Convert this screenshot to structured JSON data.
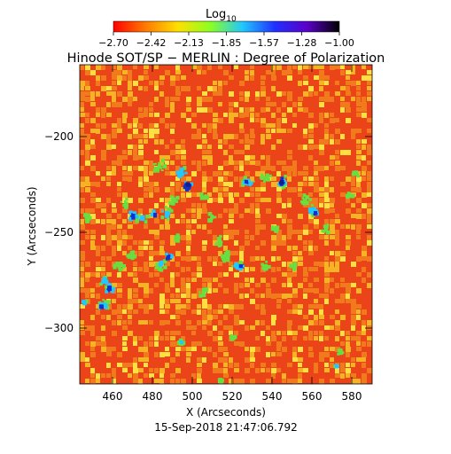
{
  "colorbar": {
    "label_base": "Log",
    "label_subscript": "10",
    "ticks": [
      "−2.70",
      "−2.42",
      "−2.13",
      "−1.85",
      "−1.57",
      "−1.28",
      "−1.00"
    ],
    "colors": [
      "#ff0000",
      "#ff7a00",
      "#ffe000",
      "#8cff20",
      "#20c8ff",
      "#2030ff",
      "#5a00c8",
      "#000000"
    ]
  },
  "title": "Hinode SOT/SP − MERLIN : Degree of Polarization",
  "axes": {
    "xlabel": "X (Arcseconds)",
    "ylabel": "Y (Arcseconds)",
    "xticks": [
      "460",
      "480",
      "500",
      "520",
      "540",
      "560",
      "580"
    ],
    "yticks": [
      "−200",
      "−250",
      "−300"
    ]
  },
  "timestamp": "15-Sep-2018 21:47:06.792",
  "image_palette": {
    "background": "#ea4418",
    "mid": "#f07a1c",
    "light": "#f6b424",
    "bright": "#ffe040",
    "green": "#66e040",
    "cyan": "#20c8ff",
    "blue": "#1030d0",
    "dark": "#10208a"
  }
}
